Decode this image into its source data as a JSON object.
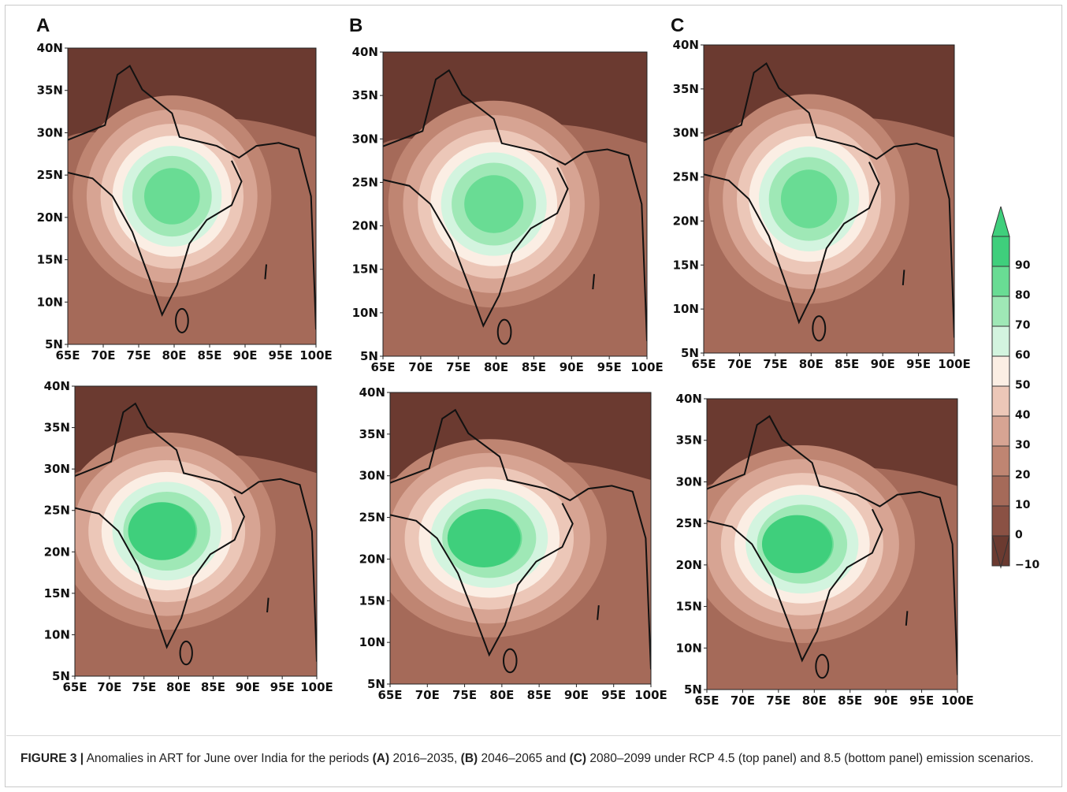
{
  "figure": {
    "column_letters": [
      "A",
      "B",
      "C"
    ],
    "lat_ticks": [
      "40N",
      "35N",
      "30N",
      "25N",
      "20N",
      "15N",
      "10N",
      "5N"
    ],
    "lon_ticks": [
      "65E",
      "70E",
      "75E",
      "80E",
      "85E",
      "90E",
      "95E",
      "100E"
    ],
    "panels": [
      {
        "column": "A",
        "row": "top",
        "scenario": "RCP 4.5",
        "period": "2016–2035"
      },
      {
        "column": "B",
        "row": "top",
        "scenario": "RCP 4.5",
        "period": "2046–2065"
      },
      {
        "column": "C",
        "row": "top",
        "scenario": "RCP 4.5",
        "period": "2080–2099"
      },
      {
        "column": "A",
        "row": "bottom",
        "scenario": "8.5",
        "period": "2016–2035"
      },
      {
        "column": "B",
        "row": "bottom",
        "scenario": "8.5",
        "period": "2046–2065"
      },
      {
        "column": "C",
        "row": "bottom",
        "scenario": "8.5",
        "period": "2080–2099"
      }
    ],
    "colorbar": {
      "labels": [
        "90",
        "80",
        "70",
        "60",
        "50",
        "40",
        "30",
        "20",
        "10",
        "0",
        "−10"
      ],
      "colors": [
        "#3fcf7c",
        "#69dc94",
        "#9fe8b6",
        "#d3f4df",
        "#fbeee4",
        "#ecc7b8",
        "#d7a493",
        "#bf8572",
        "#a56a59",
        "#8a5144",
        "#6b3a30"
      ]
    },
    "caption": {
      "label": "FIGURE 3 |",
      "text_1": " Anomalies in ART for June over India for the periods ",
      "a": "(A)",
      "text_2": " 2016–2035, ",
      "b": "(B)",
      "text_3": " 2046–2065 and ",
      "c": "(C)",
      "text_4": " 2080–2099 under RCP 4.5 (top panel) and 8.5 (bottom panel) emission scenarios."
    }
  }
}
